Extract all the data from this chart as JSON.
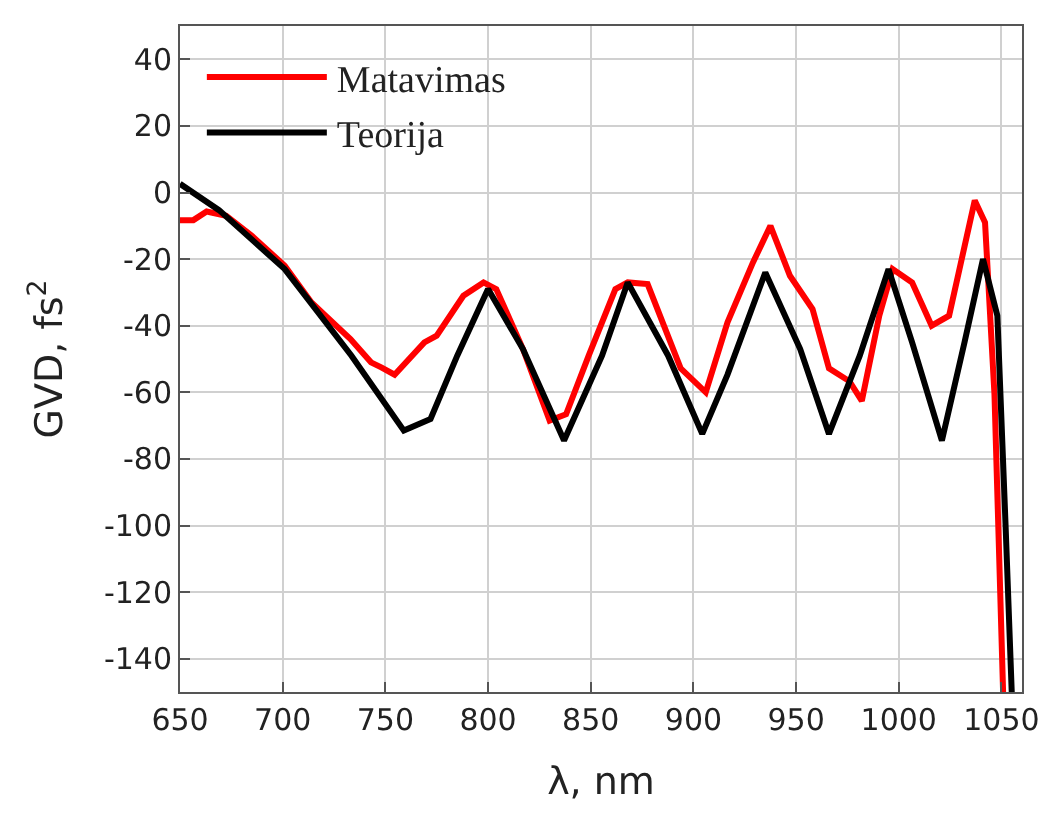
{
  "chart_data": {
    "type": "line",
    "xlabel": "λ, nm",
    "ylabel": "GVD, fs$^{2}$",
    "xlim": [
      650,
      1060
    ],
    "ylim": [
      -150,
      50
    ],
    "xticks": [
      650,
      700,
      750,
      800,
      850,
      900,
      950,
      1000,
      1050
    ],
    "yticks": [
      -140,
      -120,
      -100,
      -80,
      -60,
      -40,
      -20,
      0,
      20,
      40
    ],
    "grid": true,
    "legend": "top left",
    "line_style": "solid",
    "marker": "none",
    "series": [
      {
        "name": "Matavimas",
        "color": "#ff0000",
        "x": [
          650,
          656.5,
          663,
          672.5,
          685,
          701,
          714,
          733,
          743,
          748,
          754.5,
          769,
          775,
          788,
          797.8,
          804,
          817,
          830,
          838,
          849,
          862,
          868,
          877.7,
          893.8,
          906,
          916.6,
          929,
          937.5,
          947,
          958,
          966,
          976,
          982,
          990.5,
          997,
          1006.5,
          1016,
          1024.5,
          1037,
          1042,
          1046.6,
          1050.8
        ],
        "values": [
          -8.3,
          -8.3,
          -5.7,
          -7,
          -13,
          -22,
          -33,
          -44,
          -51,
          -52.5,
          -54.7,
          -45,
          -43,
          -31,
          -27,
          -29,
          -47,
          -68.5,
          -66.6,
          -49,
          -29,
          -27,
          -27.5,
          -52.8,
          -60,
          -39,
          -21,
          -10,
          -25,
          -35,
          -52.8,
          -56.7,
          -62.6,
          -37,
          -23,
          -27,
          -40,
          -37,
          -2.4,
          -9,
          -60.7,
          -150
        ]
      },
      {
        "name": "Teorija",
        "color": "#000000",
        "x": [
          650,
          669,
          701,
          733.5,
          759,
          772,
          785,
          800,
          817,
          837,
          855.5,
          868,
          887.7,
          904.3,
          916.6,
          935,
          952,
          966,
          981,
          995,
          1006.5,
          1021,
          1032,
          1041,
          1048,
          1052,
          1055
        ],
        "values": [
          2.6,
          -5.3,
          -23,
          -49,
          -71.5,
          -68,
          -49,
          -29,
          -47,
          -74.5,
          -49,
          -27,
          -49,
          -72.5,
          -54.7,
          -24,
          -47,
          -72.5,
          -49,
          -23,
          -45,
          -74.5,
          -45,
          -20,
          -37,
          -100,
          -150
        ]
      }
    ]
  }
}
